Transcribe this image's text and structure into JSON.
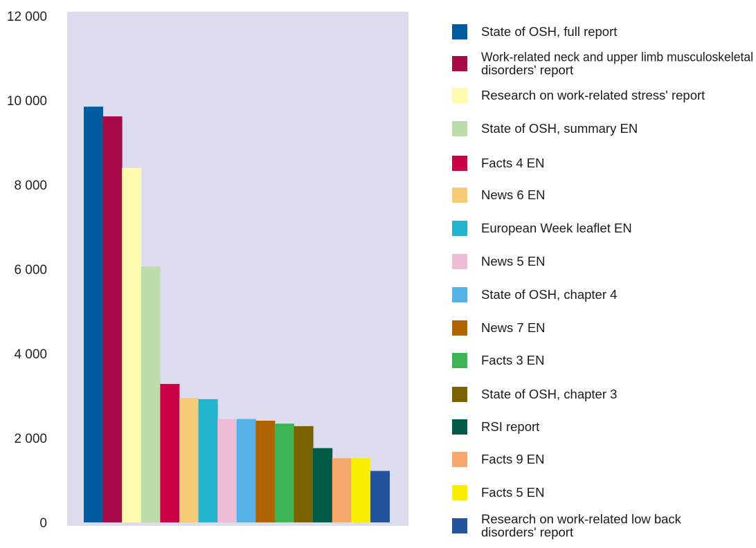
{
  "chart_data": {
    "type": "bar",
    "title": "",
    "xlabel": "",
    "ylabel": "",
    "ylim": [
      0,
      12000
    ],
    "yticks": [
      {
        "value": 0,
        "label": "0"
      },
      {
        "value": 2000,
        "label": "2 000"
      },
      {
        "value": 4000,
        "label": "4 000"
      },
      {
        "value": 6000,
        "label": "6 000"
      },
      {
        "value": 8000,
        "label": "8 000"
      },
      {
        "value": 10000,
        "label": "10 000"
      },
      {
        "value": 12000,
        "label": "12 000"
      }
    ],
    "grid": false,
    "legend_position": "right",
    "plot_background": "#dcdcee",
    "series": [
      {
        "name": "State of OSH, full report",
        "value": 9850,
        "color": "#005c9e",
        "legend_lines": [
          "State of OSH, full report"
        ]
      },
      {
        "name": "Work-related neck and upper limb musculoskeletal disorders' report",
        "value": 9620,
        "color": "#a80a48",
        "legend_lines": [
          "Work-related neck and upper limb musculoskeletal",
          "disorders' report"
        ]
      },
      {
        "name": "Research on work-related stress' report",
        "value": 8400,
        "color": "#fffbae",
        "legend_lines": [
          "Research on work-related stress' report"
        ]
      },
      {
        "name": "State of OSH, summary EN",
        "value": 6060,
        "color": "#bcdcaa",
        "legend_lines": [
          "State of OSH, summary EN"
        ]
      },
      {
        "name": "Facts 4 EN",
        "value": 3280,
        "color": "#cc0044",
        "legend_lines": [
          "Facts 4 EN"
        ]
      },
      {
        "name": "News 6 EN",
        "value": 2950,
        "color": "#f8cb78",
        "legend_lines": [
          "News 6 EN"
        ]
      },
      {
        "name": "European Week leaflet EN",
        "value": 2920,
        "color": "#22b4cc",
        "legend_lines": [
          "European Week leaflet EN"
        ]
      },
      {
        "name": "News 5 EN",
        "value": 2450,
        "color": "#eebcd4",
        "legend_lines": [
          "News 5 EN"
        ]
      },
      {
        "name": "State of OSH, chapter 4",
        "value": 2450,
        "color": "#55b2e6",
        "legend_lines": [
          "State of OSH, chapter 4"
        ]
      },
      {
        "name": "News 7 EN",
        "value": 2410,
        "color": "#b06400",
        "legend_lines": [
          "News 7 EN"
        ]
      },
      {
        "name": "Facts 3 EN",
        "value": 2340,
        "color": "#3cb454",
        "legend_lines": [
          "Facts 3 EN"
        ]
      },
      {
        "name": "State of OSH, chapter 3",
        "value": 2280,
        "color": "#786200",
        "legend_lines": [
          "State of OSH, chapter 3"
        ]
      },
      {
        "name": "RSI report",
        "value": 1760,
        "color": "#005c48",
        "legend_lines": [
          "RSI report"
        ]
      },
      {
        "name": "Facts 9 EN",
        "value": 1520,
        "color": "#f4a86c",
        "legend_lines": [
          "Facts 9 EN"
        ]
      },
      {
        "name": "Facts 5 EN",
        "value": 1520,
        "color": "#f8ee00",
        "legend_lines": [
          "Facts 5 EN"
        ]
      },
      {
        "name": "Research on work-related low back disorders' report",
        "value": 1220,
        "color": "#22529c",
        "legend_lines": [
          "Research on work-related low back",
          "disorders' report"
        ]
      }
    ]
  }
}
